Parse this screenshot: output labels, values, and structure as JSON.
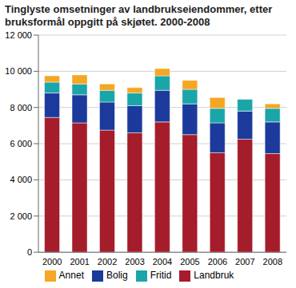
{
  "chart_data": {
    "type": "bar",
    "title": "Tinglyste omsetninger av landbrukseiendommer, etter bruksformål oppgitt på skjøtet. 2000-2008",
    "categories": [
      "2000",
      "2001",
      "2002",
      "2003",
      "2004",
      "2005",
      "2006",
      "2007",
      "2008"
    ],
    "series": [
      {
        "name": "Landbruk",
        "color": "#a51c2b",
        "values": [
          7450,
          7150,
          6750,
          6600,
          7200,
          6500,
          5500,
          6250,
          5450
        ]
      },
      {
        "name": "Bolig",
        "color": "#1b3a9c",
        "values": [
          1350,
          1550,
          1550,
          1500,
          1750,
          1700,
          1650,
          1550,
          1750
        ]
      },
      {
        "name": "Fritid",
        "color": "#1aa5a8",
        "values": [
          600,
          600,
          650,
          700,
          800,
          800,
          800,
          650,
          750
        ]
      },
      {
        "name": "Annet",
        "color": "#f5a623",
        "values": [
          350,
          500,
          350,
          300,
          400,
          500,
          600,
          0,
          250
        ]
      }
    ],
    "stacked": true,
    "ylim": [
      0,
      12000
    ],
    "yticks": [
      0,
      {
        "value": 2000,
        "label": "2 000"
      },
      {
        "value": 4000,
        "label": "4 000"
      },
      {
        "value": 6000,
        "label": "6 000"
      },
      {
        "value": 8000,
        "label": "8 000"
      },
      {
        "value": 10000,
        "label": "10 000"
      },
      {
        "value": 12000,
        "label": "12 000"
      }
    ],
    "grid": true,
    "legend": "bottom"
  }
}
